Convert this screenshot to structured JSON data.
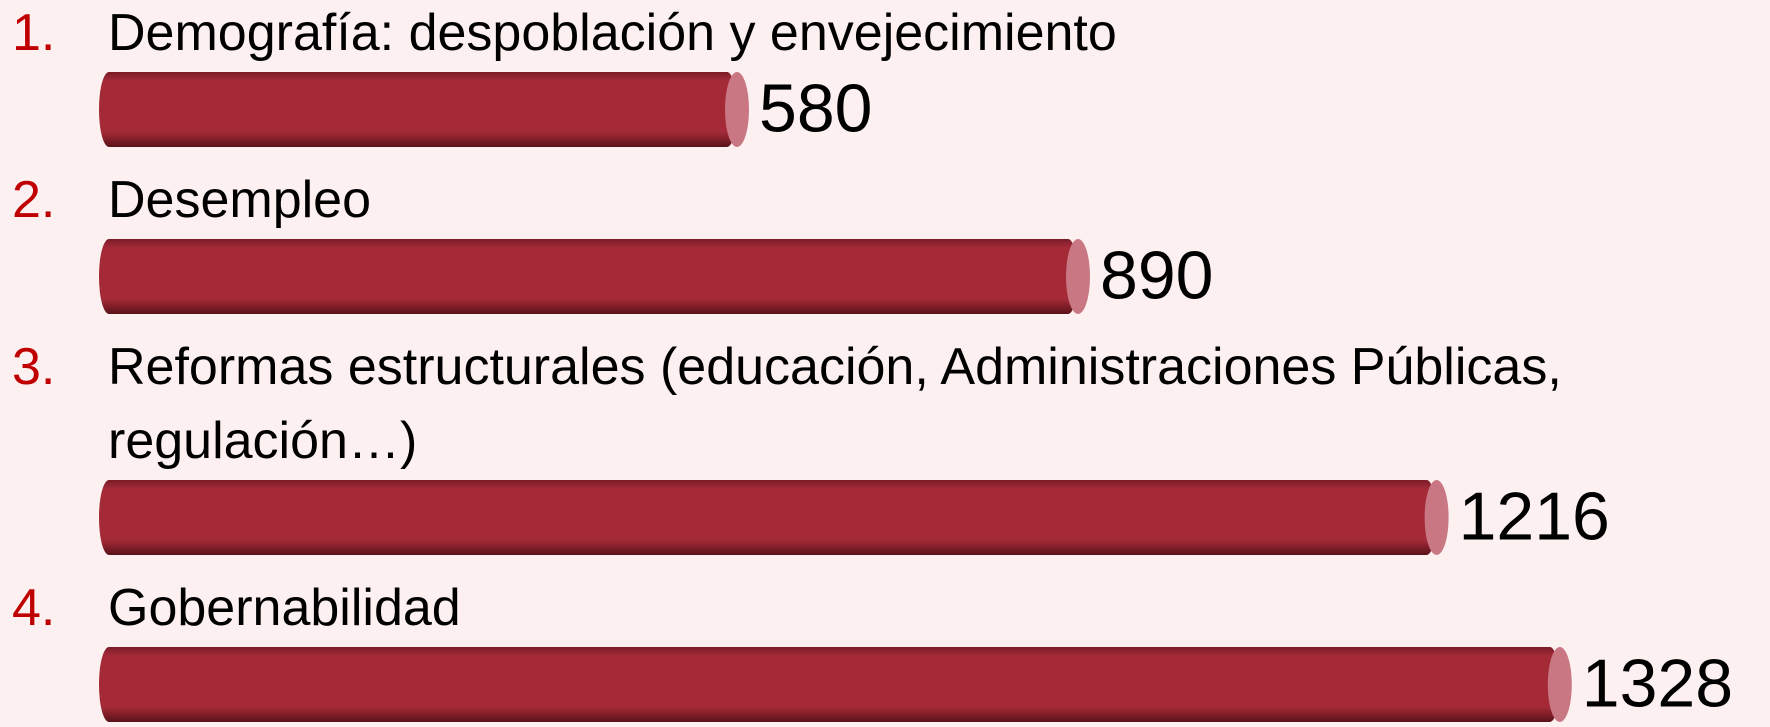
{
  "chart_data": {
    "type": "bar",
    "markers": [
      "1.",
      "2.",
      "3.",
      "4."
    ],
    "categories": [
      "Demografía: despoblación y envejecimiento",
      "Desempleo",
      "Reformas estructurales (educación, Administraciones Públicas, regulación…)",
      "Gobernabilidad"
    ],
    "values": [
      580,
      890,
      1216,
      1328
    ],
    "color": "#a52a38",
    "marker_color": "#c00000"
  }
}
